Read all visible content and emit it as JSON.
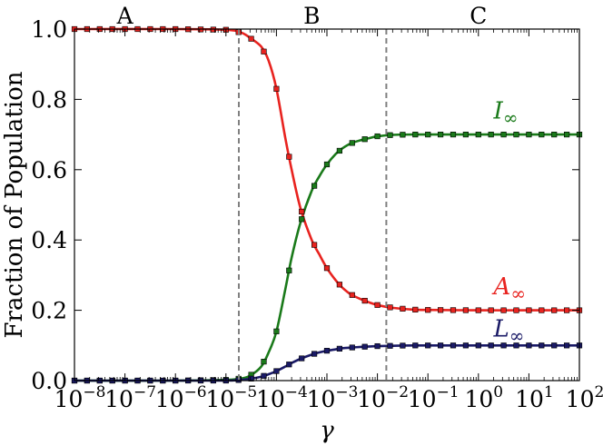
{
  "chart_data": {
    "type": "line",
    "title": "",
    "xlabel": "γ",
    "ylabel": "Fraction of Population",
    "xscale": "log",
    "xlim": [
      1e-08,
      100
    ],
    "ylim": [
      0,
      1.0
    ],
    "grid": false,
    "legend": "none",
    "x_ticks": [
      {
        "value": 1e-08,
        "base": "10",
        "exp": "−8"
      },
      {
        "value": 1e-07,
        "base": "10",
        "exp": "−7"
      },
      {
        "value": 1e-06,
        "base": "10",
        "exp": "−6"
      },
      {
        "value": 1e-05,
        "base": "10",
        "exp": "−5"
      },
      {
        "value": 0.0001,
        "base": "10",
        "exp": "−4"
      },
      {
        "value": 0.001,
        "base": "10",
        "exp": "−3"
      },
      {
        "value": 0.01,
        "base": "10",
        "exp": "−2"
      },
      {
        "value": 0.1,
        "base": "10",
        "exp": "−1"
      },
      {
        "value": 1,
        "base": "10",
        "exp": "0"
      },
      {
        "value": 10,
        "base": "10",
        "exp": "1"
      },
      {
        "value": 100,
        "base": "10",
        "exp": "2"
      }
    ],
    "y_ticks": [
      {
        "value": 0.0,
        "label": "0.0"
      },
      {
        "value": 0.2,
        "label": "0.2"
      },
      {
        "value": 0.4,
        "label": "0.4"
      },
      {
        "value": 0.6,
        "label": "0.6"
      },
      {
        "value": 0.8,
        "label": "0.8"
      },
      {
        "value": 1.0,
        "label": "1.0"
      }
    ],
    "vlines": [
      1.8e-05,
      0.015
    ],
    "regions": [
      {
        "label": "A",
        "x": 1e-07
      },
      {
        "label": "B",
        "x": 0.0005
      },
      {
        "label": "C",
        "x": 1
      }
    ],
    "series": [
      {
        "label_main": "I",
        "label_sub": "∞",
        "color": "#1a7a1a",
        "label_at": {
          "x": 2,
          "y": 0.745
        },
        "x": [
          1e-08,
          1e-06,
          1e-05,
          2e-05,
          3e-05,
          5e-05,
          7e-05,
          0.0001,
          0.00015,
          0.0002,
          0.0003,
          0.0005,
          0.0007,
          0.001,
          0.0015,
          0.002,
          0.003,
          0.005,
          0.007,
          0.01,
          0.02,
          0.05,
          0.1,
          1,
          10,
          100
        ],
        "y": [
          0.0,
          0.0,
          0.002,
          0.006,
          0.014,
          0.04,
          0.08,
          0.14,
          0.26,
          0.35,
          0.45,
          0.54,
          0.58,
          0.615,
          0.645,
          0.66,
          0.675,
          0.685,
          0.69,
          0.695,
          0.699,
          0.7,
          0.7,
          0.7,
          0.7,
          0.7
        ]
      },
      {
        "label_main": "A",
        "label_sub": "∞",
        "color": "#e8231f",
        "label_at": {
          "x": 2,
          "y": 0.245
        },
        "x": [
          1e-08,
          1e-06,
          1e-05,
          2e-05,
          3e-05,
          5e-05,
          7e-05,
          0.0001,
          0.00015,
          0.0002,
          0.0003,
          0.0005,
          0.0007,
          0.001,
          0.0015,
          0.002,
          0.003,
          0.005,
          0.007,
          0.01,
          0.02,
          0.05,
          0.1,
          1,
          10,
          100
        ],
        "y": [
          1.0,
          1.0,
          0.998,
          0.99,
          0.975,
          0.95,
          0.91,
          0.83,
          0.69,
          0.6,
          0.49,
          0.4,
          0.36,
          0.32,
          0.285,
          0.265,
          0.245,
          0.23,
          0.222,
          0.215,
          0.207,
          0.202,
          0.201,
          0.2,
          0.2,
          0.2
        ]
      },
      {
        "label_main": "L",
        "label_sub": "∞",
        "color": "#1a1a66",
        "label_at": {
          "x": 2,
          "y": 0.125
        },
        "x": [
          1e-08,
          1e-06,
          1e-05,
          2e-05,
          3e-05,
          5e-05,
          7e-05,
          0.0001,
          0.00015,
          0.0002,
          0.0003,
          0.0005,
          0.0007,
          0.001,
          0.0015,
          0.002,
          0.003,
          0.005,
          0.007,
          0.01,
          0.02,
          0.05,
          0.1,
          1,
          10,
          100
        ],
        "y": [
          0.0,
          0.0,
          0.0,
          0.002,
          0.005,
          0.011,
          0.018,
          0.027,
          0.04,
          0.05,
          0.062,
          0.074,
          0.08,
          0.085,
          0.089,
          0.092,
          0.094,
          0.096,
          0.097,
          0.098,
          0.099,
          0.1,
          0.1,
          0.1,
          0.1,
          0.1
        ]
      }
    ]
  }
}
